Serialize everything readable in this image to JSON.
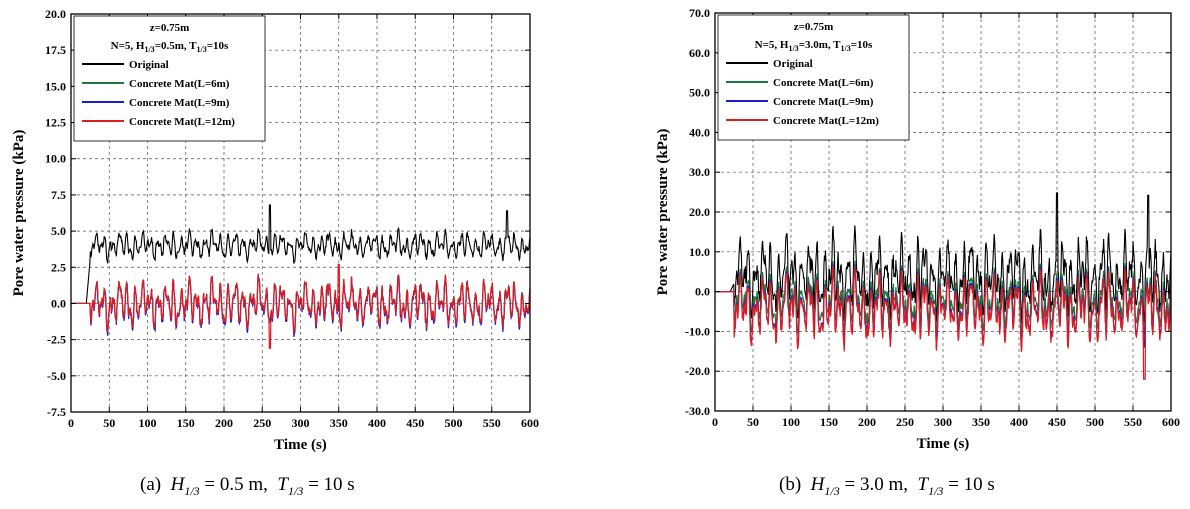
{
  "chart_data": [
    {
      "type": "line",
      "xlabel": "Time (s)",
      "ylabel": "Pore water pressure (kPa)",
      "xlim": [
        0,
        600
      ],
      "ylim": [
        -7.5,
        20.0
      ],
      "x_ticks": [
        "0",
        "50",
        "100",
        "150",
        "200",
        "250",
        "300",
        "350",
        "400",
        "450",
        "500",
        "550",
        "600"
      ],
      "y_ticks": [
        "-7.5",
        "-5.0",
        "-2.5",
        "0.0",
        "2.5",
        "5.0",
        "7.5",
        "10.0",
        "12.5",
        "15.0",
        "17.5",
        "20.0"
      ],
      "grid": true,
      "legend_position": "top-left",
      "legend_title_1": "z=0.75m",
      "legend_title_2": {
        "pre": "N=5, H",
        "sub1": "1/3",
        "mid": "=0.5m, T",
        "sub2": "1/3",
        "post": "=10s"
      },
      "series": [
        {
          "name": "Original",
          "color": "#000000",
          "mean": 4.0,
          "amp": 0.9,
          "start_level": 3.0
        },
        {
          "name": "Concrete Mat(L=6m)",
          "color": "#1e7a3c",
          "mean": 0.0,
          "amp": 1.5,
          "start_level": 0.0
        },
        {
          "name": "Concrete Mat(L=9m)",
          "color": "#1c1cd6",
          "mean": -0.1,
          "amp": 1.6,
          "start_level": 0.0
        },
        {
          "name": "Concrete Mat(L=12m)",
          "color": "#e31a1c",
          "mean": 0.0,
          "amp": 1.5,
          "start_level": 0.0
        }
      ],
      "peaks": [
        {
          "series": "Original",
          "x": 260,
          "y": 6.8
        },
        {
          "series": "Original",
          "x": 570,
          "y": 6.4
        },
        {
          "series": "Concrete Mat(L=12m)",
          "x": 350,
          "y": 2.7
        },
        {
          "series": "Concrete Mat(L=12m)",
          "x": 260,
          "y": -3.1
        }
      ],
      "caption": {
        "label": "(a)",
        "h": "H",
        "h_sub": "1/3",
        "h_val": "= 0.5 m,",
        "t": "T",
        "t_sub": "1/3",
        "t_val": "= 10 s"
      }
    },
    {
      "type": "line",
      "xlabel": "Time (s)",
      "ylabel": "Pore water pressure (kPa)",
      "xlim": [
        0,
        600
      ],
      "ylim": [
        -30.0,
        70.0
      ],
      "x_ticks": [
        "0",
        "50",
        "100",
        "150",
        "200",
        "250",
        "300",
        "350",
        "400",
        "450",
        "500",
        "550",
        "600"
      ],
      "y_ticks": [
        "-30.0",
        "-20.0",
        "-10.0",
        "0.0",
        "10.0",
        "20.0",
        "30.0",
        "40.0",
        "50.0",
        "60.0",
        "70.0"
      ],
      "grid": true,
      "legend_position": "top-left",
      "legend_title_1": "z=0.75m",
      "legend_title_2": {
        "pre": "N=5, H",
        "sub1": "1/3",
        "mid": "=3.0m, T",
        "sub2": "1/3",
        "post": "=10s"
      },
      "series": [
        {
          "name": "Original",
          "color": "#000000",
          "mean": 4.0,
          "amp": 9.0,
          "start_level": 2.0
        },
        {
          "name": "Concrete Mat(L=6m)",
          "color": "#1e7a3c",
          "mean": -2.0,
          "amp": 7.0,
          "start_level": 0.0
        },
        {
          "name": "Concrete Mat(L=9m)",
          "color": "#1c1cd6",
          "mean": -4.0,
          "amp": 8.0,
          "start_level": 0.0
        },
        {
          "name": "Concrete Mat(L=12m)",
          "color": "#e31a1c",
          "mean": -4.5,
          "amp": 8.0,
          "start_level": 0.0
        }
      ],
      "peaks": [
        {
          "series": "Original",
          "x": 450,
          "y": 24.8
        },
        {
          "series": "Original",
          "x": 570,
          "y": 24.2
        },
        {
          "series": "Concrete Mat(L=12m)",
          "x": 565,
          "y": -22.0
        }
      ],
      "caption": {
        "label": "(b)",
        "h": "H",
        "h_sub": "1/3",
        "h_val": "= 3.0 m,",
        "t": "T",
        "t_sub": "1/3",
        "t_val": "= 10 s"
      }
    }
  ]
}
